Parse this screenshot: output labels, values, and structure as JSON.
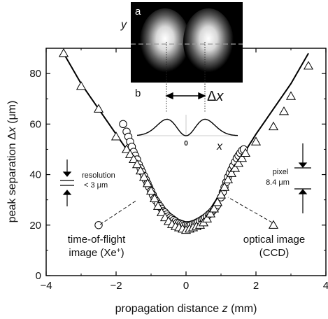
{
  "chart_data": {
    "type": "scatter",
    "xlabel_prefix": "propagation distance",
    "xlabel_var": "z",
    "xlabel_unit": "(mm)",
    "ylabel_prefix": "peak separation Δ",
    "ylabel_var": "x",
    "ylabel_unit": "(μm)",
    "xlim": [
      -4,
      4
    ],
    "ylim": [
      0,
      90
    ],
    "xticks": [
      -4,
      -2,
      0,
      2,
      4
    ],
    "yticks": [
      0,
      20,
      40,
      60,
      80
    ],
    "x_tick_labels": [
      "−4",
      "−2",
      "0",
      "2",
      "4"
    ],
    "y_tick_labels": [
      "0",
      "20",
      "40",
      "60",
      "80"
    ],
    "series": [
      {
        "marker": "circle",
        "points": [
          [
            -2.5,
            20
          ],
          [
            -1.8,
            60
          ],
          [
            -1.7,
            57
          ],
          [
            -1.65,
            55
          ],
          [
            -1.6,
            53
          ],
          [
            -1.55,
            51
          ],
          [
            -1.5,
            49
          ],
          [
            -1.45,
            47.5
          ],
          [
            -1.4,
            46
          ],
          [
            -1.35,
            44
          ],
          [
            -1.3,
            42.5
          ],
          [
            -1.25,
            41
          ],
          [
            -1.2,
            39.5
          ],
          [
            -1.15,
            38
          ],
          [
            -1.1,
            36.5
          ],
          [
            -1.05,
            35
          ],
          [
            -1.0,
            33.5
          ],
          [
            -0.95,
            32
          ],
          [
            -0.9,
            30.5
          ],
          [
            -0.85,
            29.5
          ],
          [
            -0.8,
            28.5
          ],
          [
            -0.75,
            27.5
          ],
          [
            -0.7,
            26.5
          ],
          [
            -0.65,
            25.5
          ],
          [
            -0.6,
            25
          ],
          [
            -0.55,
            24.2
          ],
          [
            -0.5,
            23.5
          ],
          [
            -0.45,
            23
          ],
          [
            -0.4,
            22.5
          ],
          [
            -0.35,
            22
          ],
          [
            -0.3,
            21.5
          ],
          [
            -0.25,
            21
          ],
          [
            -0.2,
            20.8
          ],
          [
            -0.15,
            20.5
          ],
          [
            -0.1,
            20.3
          ],
          [
            -0.05,
            20
          ],
          [
            0.0,
            20
          ],
          [
            0.05,
            20
          ],
          [
            0.1,
            20
          ],
          [
            0.15,
            20.2
          ],
          [
            0.2,
            20.4
          ],
          [
            0.25,
            20.6
          ],
          [
            0.3,
            21
          ],
          [
            0.35,
            21.3
          ],
          [
            0.4,
            21.7
          ],
          [
            0.45,
            22.1
          ],
          [
            0.5,
            22.6
          ],
          [
            0.55,
            23
          ],
          [
            0.6,
            23.6
          ],
          [
            0.65,
            24.2
          ],
          [
            0.7,
            24.8
          ],
          [
            0.75,
            25.5
          ],
          [
            0.8,
            26.2
          ],
          [
            0.85,
            27
          ],
          [
            0.9,
            28
          ],
          [
            1.0,
            31
          ],
          [
            1.05,
            33
          ],
          [
            1.1,
            35
          ],
          [
            1.15,
            37
          ],
          [
            1.2,
            39
          ],
          [
            1.25,
            40.5
          ],
          [
            1.3,
            42
          ],
          [
            1.35,
            43.5
          ],
          [
            1.4,
            45
          ],
          [
            1.45,
            46.5
          ],
          [
            1.5,
            47.5
          ],
          [
            1.55,
            48.5
          ],
          [
            1.6,
            49.5
          ],
          [
            1.65,
            50
          ]
        ]
      },
      {
        "marker": "triangle",
        "points": [
          [
            -3.5,
            88
          ],
          [
            -3.0,
            75
          ],
          [
            -2.5,
            66
          ],
          [
            -2.0,
            55
          ],
          [
            -1.7,
            50
          ],
          [
            -1.6,
            48
          ],
          [
            -1.5,
            46
          ],
          [
            -1.4,
            44
          ],
          [
            -1.3,
            41.5
          ],
          [
            -1.2,
            39
          ],
          [
            -1.1,
            36.5
          ],
          [
            -1.0,
            33.5
          ],
          [
            -0.9,
            30.5
          ],
          [
            -0.8,
            27.5
          ],
          [
            -0.7,
            25
          ],
          [
            -0.6,
            23
          ],
          [
            -0.5,
            21.5
          ],
          [
            -0.4,
            20.3
          ],
          [
            -0.3,
            19.5
          ],
          [
            -0.2,
            19
          ],
          [
            -0.1,
            18.5
          ],
          [
            0.0,
            18
          ],
          [
            0.1,
            18.5
          ],
          [
            0.2,
            19
          ],
          [
            0.3,
            19.5
          ],
          [
            0.4,
            20
          ],
          [
            0.5,
            21
          ],
          [
            0.6,
            22.5
          ],
          [
            0.7,
            24.5
          ],
          [
            0.8,
            26.5
          ],
          [
            0.9,
            29
          ],
          [
            1.0,
            32
          ],
          [
            1.1,
            35
          ],
          [
            1.2,
            38
          ],
          [
            1.3,
            40.5
          ],
          [
            1.4,
            42.5
          ],
          [
            1.5,
            44.5
          ],
          [
            1.6,
            46.5
          ],
          [
            1.7,
            48.5
          ],
          [
            2.0,
            53
          ],
          [
            2.5,
            59
          ],
          [
            2.8,
            65
          ],
          [
            3.0,
            71
          ],
          [
            3.5,
            83
          ],
          [
            2.5,
            20
          ]
        ]
      }
    ],
    "fit_curve": [
      [
        -3.5,
        88
      ],
      [
        -3.0,
        76
      ],
      [
        -2.5,
        66
      ],
      [
        -2.0,
        56
      ],
      [
        -1.5,
        46
      ],
      [
        -1.0,
        34
      ],
      [
        -0.7,
        26.5
      ],
      [
        -0.5,
        23
      ],
      [
        -0.3,
        21
      ],
      [
        -0.1,
        20.2
      ],
      [
        0.0,
        20
      ],
      [
        0.1,
        20.2
      ],
      [
        0.3,
        21
      ],
      [
        0.5,
        23
      ],
      [
        0.7,
        26.5
      ],
      [
        1.0,
        33
      ],
      [
        1.5,
        45
      ],
      [
        2.0,
        56
      ],
      [
        2.5,
        66
      ],
      [
        3.0,
        76
      ],
      [
        3.5,
        88
      ]
    ],
    "annotations": {
      "resolution_line1": "resolution",
      "resolution_line2": "< 3 μm",
      "pixel_line1": "pixel",
      "pixel_line2": "8.4 μm",
      "tof_line1": "time-of-flight",
      "tof_line2_prefix": "image (Xe",
      "tof_line2_sup": "+",
      "tof_line2_suffix": ")",
      "optical_line1": "optical image",
      "optical_line2": "(CCD)"
    },
    "inset": {
      "panel_a_label": "a",
      "panel_b_label": "b",
      "y_axis_label": "y",
      "x_axis_label": "x",
      "delta_symbol": "Δ",
      "delta_var": "x",
      "zero_label": "0"
    }
  }
}
